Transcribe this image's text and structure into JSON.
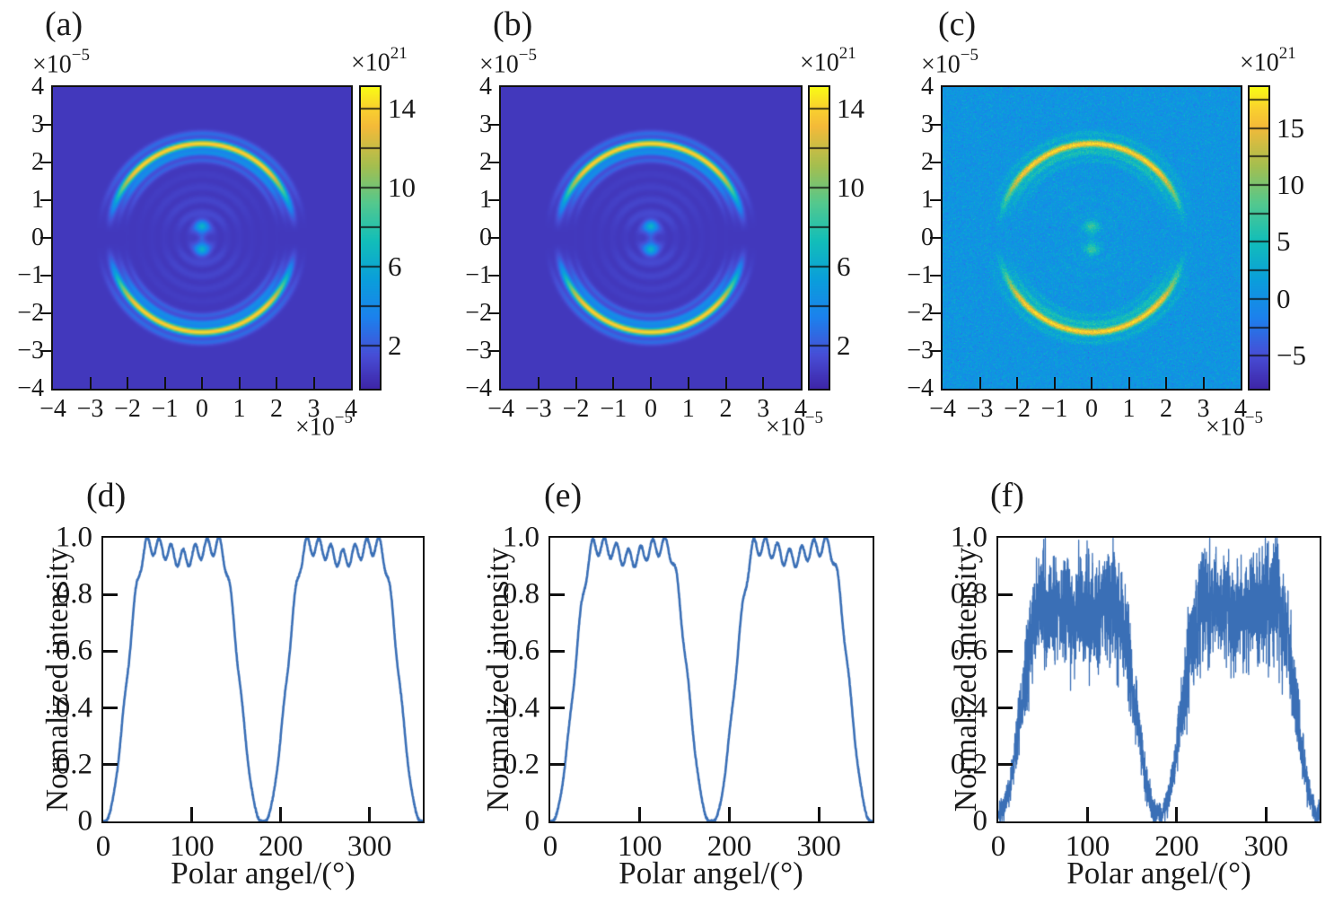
{
  "chart_data": [
    {
      "id": "a",
      "type": "heatmap",
      "label": "(a)",
      "axis_exponent": {
        "base": "×10",
        "sup": "−5"
      },
      "xlim": [
        -4,
        4
      ],
      "ylim": [
        -4,
        4
      ],
      "axis_scale": "1e-5",
      "x_ticks": [
        -4,
        -3,
        -2,
        -1,
        0,
        1,
        2,
        3,
        4
      ],
      "y_ticks": [
        4,
        3,
        2,
        1,
        0,
        -1,
        -2,
        -3,
        -4
      ],
      "colorbar": {
        "exponent": {
          "base": "×10",
          "sup": "21"
        },
        "range": [
          -0.2,
          15.1
        ],
        "tick_values": [
          2,
          4,
          6,
          8,
          10,
          12,
          14
        ],
        "labels": [
          {
            "v": 14,
            "t": "14"
          },
          {
            "v": 10,
            "t": "10"
          },
          {
            "v": 6,
            "t": "6"
          },
          {
            "v": 2,
            "t": "2"
          }
        ]
      },
      "pattern": {
        "description": "dark-blue field, bright ring radius 2.5e-5 m with arcs brightest at top and bottom fading to zero at left/right, faint concentric ripples, two cyan spots on vertical axis near center",
        "background": 0.55,
        "ring_radius": 2.5,
        "ring_sigma": 0.07,
        "ring_peak": 13.8,
        "sidelobes": [
          [
            2.27,
            0.062,
            0.27
          ],
          [
            2.06,
            0.05,
            0.12
          ],
          [
            2.77,
            0.058,
            0.15
          ]
        ],
        "ripple": {
          "spacing": 0.34,
          "amp": 1.0,
          "extent": 2.2
        },
        "spots": {
          "dy": 0.29,
          "sigma": 0.125,
          "amp": 5.3
        },
        "noise_sigma": 0,
        "seed": 11
      }
    },
    {
      "id": "b",
      "type": "heatmap",
      "label": "(b)",
      "axis_exponent": {
        "base": "×10",
        "sup": "−5"
      },
      "xlim": [
        -4,
        4
      ],
      "ylim": [
        -4,
        4
      ],
      "axis_scale": "1e-5",
      "x_ticks": [
        -4,
        -3,
        -2,
        -1,
        0,
        1,
        2,
        3,
        4
      ],
      "y_ticks": [
        4,
        3,
        2,
        1,
        0,
        -1,
        -2,
        -3,
        -4
      ],
      "colorbar": {
        "exponent": {
          "base": "×10",
          "sup": "21"
        },
        "range": [
          -0.2,
          15.1
        ],
        "tick_values": [
          2,
          4,
          6,
          8,
          10,
          12,
          14
        ],
        "labels": [
          {
            "v": 14,
            "t": "14"
          },
          {
            "v": 10,
            "t": "10"
          },
          {
            "v": 6,
            "t": "6"
          },
          {
            "v": 2,
            "t": "2"
          }
        ]
      },
      "pattern": {
        "description": "same as panel (a): ring radius 2.5e-5 m, bright top/bottom arcs, central double spot",
        "background": 0.55,
        "ring_radius": 2.5,
        "ring_sigma": 0.07,
        "ring_peak": 13.8,
        "sidelobes": [
          [
            2.27,
            0.062,
            0.27
          ],
          [
            2.06,
            0.05,
            0.12
          ],
          [
            2.77,
            0.058,
            0.15
          ]
        ],
        "ripple": {
          "spacing": 0.34,
          "amp": 1.0,
          "extent": 2.2
        },
        "spots": {
          "dy": 0.29,
          "sigma": 0.125,
          "amp": 5.3
        },
        "noise_sigma": 0,
        "seed": 12
      }
    },
    {
      "id": "c",
      "type": "heatmap",
      "label": "(c)",
      "axis_exponent": {
        "base": "×10",
        "sup": "−5"
      },
      "xlim": [
        -4,
        4
      ],
      "ylim": [
        -4,
        4
      ],
      "axis_scale": "1e-5",
      "x_ticks": [
        -4,
        -3,
        -2,
        -1,
        0,
        1,
        2,
        3,
        4
      ],
      "y_ticks": [
        4,
        3,
        2,
        1,
        0,
        -1,
        -2,
        -3,
        -4
      ],
      "colorbar": {
        "exponent": {
          "base": "×10",
          "sup": "21"
        },
        "range": [
          -7.9,
          18.6
        ],
        "tick_values": [
          -5,
          -2.5,
          0,
          2.5,
          5,
          7.5,
          10,
          12.5,
          15,
          17.5
        ],
        "labels": [
          {
            "v": 15,
            "t": "15"
          },
          {
            "v": 10,
            "t": "10"
          },
          {
            "v": 5,
            "t": "5"
          },
          {
            "v": 0,
            "t": "0"
          },
          {
            "v": -5,
            "t": "−5"
          }
        ]
      },
      "pattern": {
        "description": "noisy measured version of (a): grainy light-blue background, same ring and central double spot",
        "background": 0.6,
        "ring_radius": 2.5,
        "ring_sigma": 0.07,
        "ring_peak": 15.5,
        "sidelobes": [
          [
            2.27,
            0.062,
            0.27
          ],
          [
            2.06,
            0.05,
            0.12
          ],
          [
            2.77,
            0.058,
            0.15
          ]
        ],
        "ripple": {
          "spacing": 0.34,
          "amp": 1.1,
          "extent": 2.2
        },
        "spots": {
          "dy": 0.29,
          "sigma": 0.125,
          "amp": 5.8
        },
        "noise_sigma": 1.15,
        "seed": 13
      }
    },
    {
      "id": "d",
      "type": "line",
      "label": "(d)",
      "xlabel": "Polar angel/(°)",
      "ylabel": "Normalized intensity",
      "xlim": [
        0,
        360
      ],
      "ylim": [
        0,
        1
      ],
      "x_ticks": [
        {
          "v": 0,
          "t": "0"
        },
        {
          "v": 100,
          "t": "100"
        },
        {
          "v": 200,
          "t": "200"
        },
        {
          "v": 300,
          "t": "300"
        }
      ],
      "y_ticks": [
        {
          "v": 1,
          "t": "1.0"
        },
        {
          "v": 0.8,
          "t": "0.8"
        },
        {
          "v": 0.6,
          "t": "0.6"
        },
        {
          "v": 0.4,
          "t": "0.4"
        },
        {
          "v": 0.2,
          "t": "0.2"
        },
        {
          "v": 0,
          "t": "0"
        }
      ],
      "line_color": "#3a6fb6",
      "model": {
        "kind": "clean",
        "plateau": 0.972,
        "wiggle_amp": 0.032,
        "wiggle_period": 13.5,
        "wiggle_phase": 0,
        "mid_dip": 0.045,
        "mid_dip_sigma": 14,
        "rise": [
          2,
          50
        ],
        "fall": [
          130,
          178
        ],
        "noise": 0.004,
        "seed": 3,
        "points": 1440,
        "line_width": 2.6
      },
      "samples_deg_value": [
        [
          0,
          0
        ],
        [
          10,
          0.02
        ],
        [
          20,
          0.12
        ],
        [
          30,
          0.34
        ],
        [
          40,
          0.66
        ],
        [
          50,
          0.95
        ],
        [
          60,
          0.97
        ],
        [
          70,
          0.99
        ],
        [
          80,
          0.95
        ],
        [
          90,
          0.93
        ],
        [
          100,
          0.96
        ],
        [
          110,
          0.99
        ],
        [
          120,
          0.97
        ],
        [
          130,
          0.98
        ],
        [
          140,
          0.77
        ],
        [
          150,
          0.45
        ],
        [
          160,
          0.16
        ],
        [
          170,
          0.02
        ],
        [
          180,
          0
        ],
        [
          190,
          0.02
        ],
        [
          200,
          0.12
        ],
        [
          210,
          0.34
        ],
        [
          220,
          0.66
        ],
        [
          230,
          0.95
        ],
        [
          240,
          0.97
        ],
        [
          250,
          0.99
        ],
        [
          260,
          0.95
        ],
        [
          270,
          0.93
        ],
        [
          280,
          0.96
        ],
        [
          290,
          0.99
        ],
        [
          300,
          0.97
        ],
        [
          310,
          0.98
        ],
        [
          320,
          0.77
        ],
        [
          330,
          0.45
        ],
        [
          340,
          0.16
        ],
        [
          350,
          0.02
        ],
        [
          360,
          0
        ]
      ]
    },
    {
      "id": "e",
      "type": "line",
      "label": "(e)",
      "xlabel": "Polar angel/(°)",
      "ylabel": "Normalized intensity",
      "xlim": [
        0,
        360
      ],
      "ylim": [
        0,
        1
      ],
      "x_ticks": [
        {
          "v": 0,
          "t": "0"
        },
        {
          "v": 100,
          "t": "100"
        },
        {
          "v": 200,
          "t": "200"
        },
        {
          "v": 300,
          "t": "300"
        }
      ],
      "y_ticks": [
        {
          "v": 1,
          "t": "1.0"
        },
        {
          "v": 0.8,
          "t": "0.8"
        },
        {
          "v": 0.6,
          "t": "0.6"
        },
        {
          "v": 0.4,
          "t": "0.4"
        },
        {
          "v": 0.2,
          "t": "0.2"
        },
        {
          "v": 0,
          "t": "0"
        }
      ],
      "line_color": "#3a6fb6",
      "model": {
        "kind": "clean",
        "plateau": 0.972,
        "wiggle_amp": 0.032,
        "wiggle_period": 13.5,
        "wiggle_phase": 1.2,
        "mid_dip": 0.045,
        "mid_dip_sigma": 14,
        "rise": [
          2,
          50
        ],
        "fall": [
          130,
          178
        ],
        "noise": 0.004,
        "seed": 5,
        "points": 1440,
        "line_width": 2.6
      },
      "samples_deg_value": [
        [
          0,
          0
        ],
        [
          10,
          0.02
        ],
        [
          20,
          0.12
        ],
        [
          30,
          0.34
        ],
        [
          40,
          0.66
        ],
        [
          50,
          0.95
        ],
        [
          60,
          0.97
        ],
        [
          70,
          0.99
        ],
        [
          80,
          0.95
        ],
        [
          90,
          0.93
        ],
        [
          100,
          0.96
        ],
        [
          110,
          0.99
        ],
        [
          120,
          0.97
        ],
        [
          130,
          0.98
        ],
        [
          140,
          0.77
        ],
        [
          150,
          0.45
        ],
        [
          160,
          0.16
        ],
        [
          170,
          0.02
        ],
        [
          180,
          0
        ],
        [
          190,
          0.02
        ],
        [
          200,
          0.12
        ],
        [
          210,
          0.34
        ],
        [
          220,
          0.66
        ],
        [
          230,
          0.95
        ],
        [
          240,
          0.97
        ],
        [
          250,
          0.99
        ],
        [
          260,
          0.95
        ],
        [
          270,
          0.93
        ],
        [
          280,
          0.96
        ],
        [
          290,
          0.99
        ],
        [
          300,
          0.97
        ],
        [
          310,
          0.98
        ],
        [
          320,
          0.77
        ],
        [
          330,
          0.45
        ],
        [
          340,
          0.16
        ],
        [
          350,
          0.02
        ],
        [
          360,
          0
        ]
      ]
    },
    {
      "id": "f",
      "type": "line",
      "label": "(f)",
      "xlabel": "Polar angel/(°)",
      "ylabel": "Normalized intensity",
      "xlim": [
        0,
        360
      ],
      "ylim": [
        0,
        1
      ],
      "x_ticks": [
        {
          "v": 0,
          "t": "0"
        },
        {
          "v": 100,
          "t": "100"
        },
        {
          "v": 200,
          "t": "200"
        },
        {
          "v": 300,
          "t": "300"
        }
      ],
      "y_ticks": [
        {
          "v": 1,
          "t": "1.0"
        },
        {
          "v": 0.8,
          "t": "0.8"
        },
        {
          "v": 0.6,
          "t": "0.6"
        },
        {
          "v": 0.4,
          "t": "0.4"
        },
        {
          "v": 0.2,
          "t": "0.2"
        },
        {
          "v": 0,
          "t": "0"
        }
      ],
      "line_color": "#3a6fb6",
      "model": {
        "kind": "noisy",
        "plateau": 0.972,
        "wiggle_amp": 0.032,
        "wiggle_period": 13.5,
        "wiggle_phase": 0,
        "mid_dip": 0.045,
        "mid_dip_sigma": 14,
        "rise": [
          2,
          50
        ],
        "fall": [
          130,
          178
        ],
        "scale": 0.76,
        "offset": 0.03,
        "noise_base": 0.05,
        "noise_prop": 0.2,
        "seed": 7,
        "points": 2600,
        "line_width": 1.3
      },
      "samples_deg_value": [
        [
          0,
          0.05
        ],
        [
          10,
          0.05
        ],
        [
          20,
          0.12
        ],
        [
          30,
          0.29
        ],
        [
          40,
          0.53
        ],
        [
          50,
          0.75
        ],
        [
          60,
          0.77
        ],
        [
          70,
          0.78
        ],
        [
          80,
          0.75
        ],
        [
          90,
          0.74
        ],
        [
          100,
          0.76
        ],
        [
          110,
          0.78
        ],
        [
          120,
          0.77
        ],
        [
          130,
          0.77
        ],
        [
          140,
          0.61
        ],
        [
          150,
          0.37
        ],
        [
          160,
          0.15
        ],
        [
          170,
          0.05
        ],
        [
          180,
          0.04
        ],
        [
          190,
          0.05
        ],
        [
          200,
          0.12
        ],
        [
          210,
          0.29
        ],
        [
          220,
          0.53
        ],
        [
          230,
          0.75
        ],
        [
          240,
          0.77
        ],
        [
          250,
          0.78
        ],
        [
          260,
          0.75
        ],
        [
          270,
          0.74
        ],
        [
          280,
          0.76
        ],
        [
          290,
          0.78
        ],
        [
          300,
          0.77
        ],
        [
          310,
          0.77
        ],
        [
          320,
          0.61
        ],
        [
          330,
          0.37
        ],
        [
          340,
          0.15
        ],
        [
          350,
          0.05
        ],
        [
          360,
          0.05
        ]
      ]
    }
  ],
  "style": {
    "colormap": "parula",
    "frame_color": "#111111",
    "text_color": "#1a1a1a",
    "line_color": "#3a6fb6"
  }
}
